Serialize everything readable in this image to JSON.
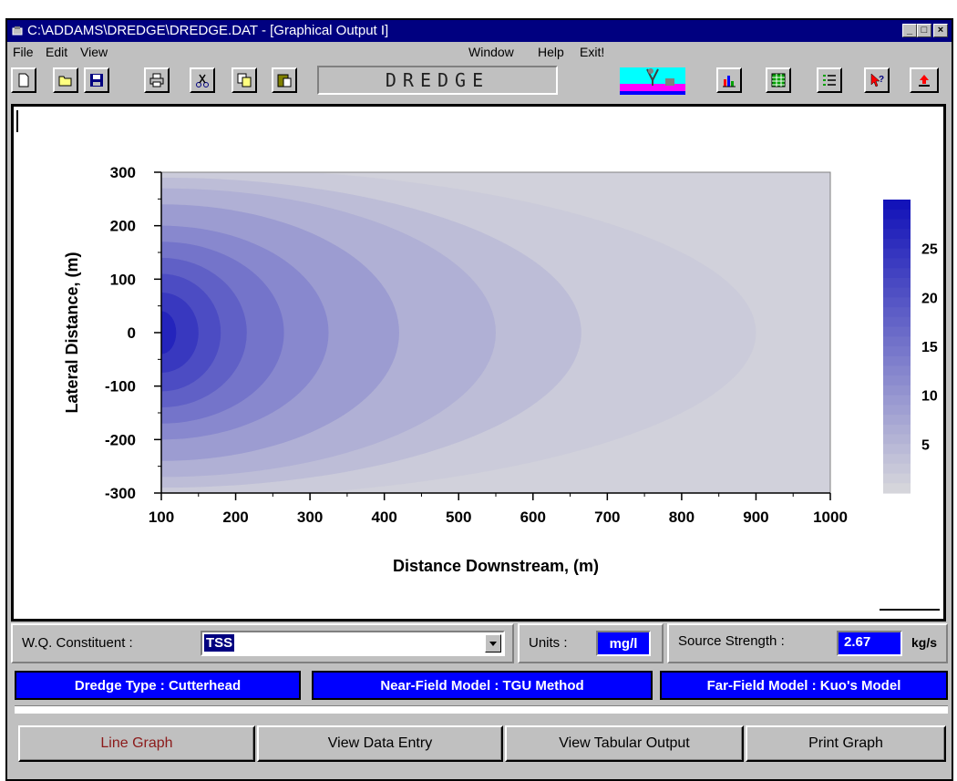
{
  "window": {
    "title": "C:\\ADDAMS\\DREDGE\\DREDGE.DAT - [Graphical Output I]",
    "buttons": {
      "minimize": "_",
      "maximize": "□",
      "close": "×"
    }
  },
  "menu": {
    "file": "File",
    "edit": "Edit",
    "view": "View",
    "window": "Window",
    "help": "Help",
    "exit": "Exit!"
  },
  "toolbar": {
    "banner": "DREDGE",
    "icons": [
      "new-file-icon",
      "open-folder-icon",
      "save-disk-icon",
      "print-icon",
      "cut-scissors-icon",
      "copy-icon",
      "paste-icon",
      "bar-chart-icon",
      "table-icon",
      "list-icon",
      "help-pointer-icon",
      "upload-arrow-icon"
    ]
  },
  "chart_data": {
    "type": "heatmap",
    "xlabel": "Distance Downstream, (m)",
    "ylabel": "Lateral Distance, (m)",
    "x_ticks": [
      "100",
      "200",
      "300",
      "400",
      "500",
      "600",
      "700",
      "800",
      "900",
      "1000"
    ],
    "y_ticks": [
      "300",
      "200",
      "100",
      "0",
      "-100",
      "-200",
      "-300"
    ],
    "xlim": [
      100,
      1000
    ],
    "ylim": [
      -300,
      300
    ],
    "colorbar": {
      "ticks": [
        "25",
        "20",
        "15",
        "10",
        "5"
      ],
      "min": 0,
      "max": 30
    },
    "max_concentration": 29,
    "min_color": "#d8d8dc",
    "max_color": "#1010b8",
    "plume_source": {
      "x": 100,
      "y": 0
    },
    "contour_levels": [
      {
        "level": 27,
        "x_extent": 120,
        "y_halfwidth": 40
      },
      {
        "level": 24,
        "x_extent": 150,
        "y_halfwidth": 75
      },
      {
        "level": 21,
        "x_extent": 180,
        "y_halfwidth": 110
      },
      {
        "level": 18,
        "x_extent": 215,
        "y_halfwidth": 140
      },
      {
        "level": 15,
        "x_extent": 265,
        "y_halfwidth": 170
      },
      {
        "level": 12,
        "x_extent": 325,
        "y_halfwidth": 200
      },
      {
        "level": 9,
        "x_extent": 420,
        "y_halfwidth": 240
      },
      {
        "level": 6,
        "x_extent": 550,
        "y_halfwidth": 270
      },
      {
        "level": 4,
        "x_extent": 665,
        "y_halfwidth": 290
      },
      {
        "level": 2,
        "x_extent": 900,
        "y_halfwidth": 310
      }
    ]
  },
  "controls": {
    "wq_label": "W.Q. Constituent :",
    "wq_value": "TSS",
    "units_label": "Units :",
    "units_value": "mg/l",
    "source_label": "Source Strength :",
    "source_value": "2.67",
    "source_unit": "kg/s",
    "dredge_type": "Dredge Type : Cutterhead",
    "near_field": "Near-Field Model : TGU Method",
    "far_field": "Far-Field Model : Kuo's Model"
  },
  "buttons": {
    "line_graph": "Line Graph",
    "view_data_entry": "View Data Entry",
    "view_tabular_output": "View Tabular Output",
    "print_graph": "Print Graph"
  },
  "colors": {
    "titlebar": "#000080",
    "info_blue": "#0000ff",
    "line_graph_text": "#8b1a1a"
  }
}
